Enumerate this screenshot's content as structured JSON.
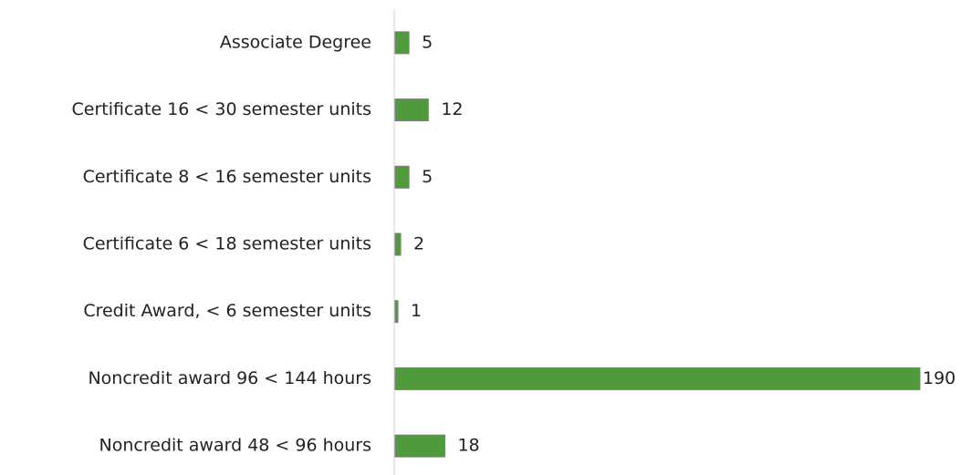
{
  "chart_data": {
    "type": "bar",
    "orientation": "horizontal",
    "categories": [
      "Associate Degree",
      "Certificate 16 < 30 semester units",
      "Certificate 8 < 16 semester units",
      "Certificate 6 < 18 semester units",
      "Credit Award, < 6 semester units",
      "Noncredit award 96 < 144 hours",
      "Noncredit award 48 < 96 hours"
    ],
    "values": [
      5,
      12,
      5,
      2,
      1,
      190,
      18
    ],
    "color": "#4f9a3a"
  }
}
